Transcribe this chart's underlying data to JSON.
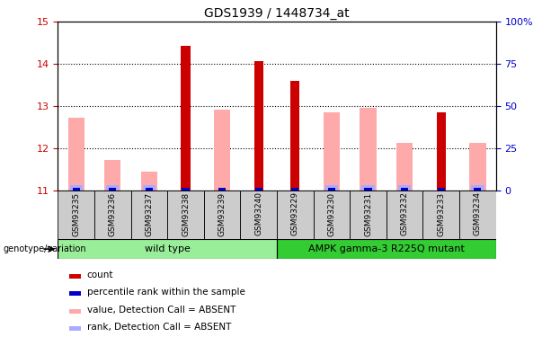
{
  "title": "GDS1939 / 1448734_at",
  "samples": [
    "GSM93235",
    "GSM93236",
    "GSM93237",
    "GSM93238",
    "GSM93239",
    "GSM93240",
    "GSM93229",
    "GSM93230",
    "GSM93231",
    "GSM93232",
    "GSM93233",
    "GSM93234"
  ],
  "red_values": [
    null,
    null,
    null,
    14.43,
    null,
    14.08,
    13.6,
    null,
    null,
    null,
    12.85,
    null
  ],
  "pink_values": [
    12.73,
    11.73,
    11.45,
    null,
    12.92,
    null,
    null,
    12.85,
    12.95,
    12.12,
    null,
    12.12
  ],
  "blue_values": [
    true,
    true,
    true,
    true,
    true,
    true,
    true,
    true,
    true,
    true,
    true,
    true
  ],
  "light_blue_values": [
    true,
    true,
    true,
    false,
    false,
    false,
    false,
    true,
    true,
    true,
    false,
    true
  ],
  "ylim": [
    11,
    15
  ],
  "yticks_left": [
    11,
    12,
    13,
    14,
    15
  ],
  "yticks_right": [
    0,
    25,
    50,
    75,
    100
  ],
  "ylabel_left_color": "#cc0000",
  "ylabel_right_color": "#0000cc",
  "group1_label": "wild type",
  "group2_label": "AMPK gamma-3 R225Q mutant",
  "group1_indices": [
    0,
    1,
    2,
    3,
    4,
    5
  ],
  "group2_indices": [
    6,
    7,
    8,
    9,
    10,
    11
  ],
  "group_label_prefix": "genotype/variation",
  "group1_bg": "#99ee99",
  "group2_bg": "#33cc33",
  "red_bar_width": 0.25,
  "pink_bar_width": 0.45,
  "blue_bar_width": 0.2,
  "light_blue_bar_width": 0.35,
  "red_color": "#cc0000",
  "pink_color": "#ffaaaa",
  "blue_color": "#0000cc",
  "light_blue_color": "#aaaaff",
  "tick_bg": "#cccccc",
  "grid_dotted_color": "#000000",
  "legend_items": [
    {
      "color": "#cc0000",
      "label": "count"
    },
    {
      "color": "#0000cc",
      "label": "percentile rank within the sample"
    },
    {
      "color": "#ffaaaa",
      "label": "value, Detection Call = ABSENT"
    },
    {
      "color": "#aaaaff",
      "label": "rank, Detection Call = ABSENT"
    }
  ]
}
